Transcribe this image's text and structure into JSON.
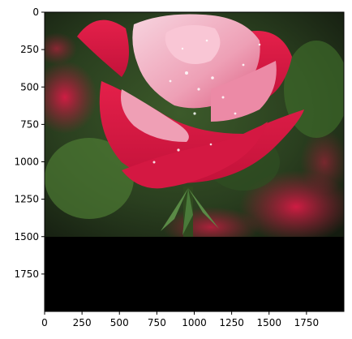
{
  "figure": {
    "type": "image-plot",
    "image": {
      "description_icon": "rose-photo",
      "colors": {
        "petal_red": "#d8173f",
        "petal_pink": "#f0a7bd",
        "petal_highlight": "#f7d2de",
        "leaf_green": "#3f6b2c",
        "background_dark": "#1e2b17",
        "padding": "#000000"
      }
    },
    "axes": {
      "x_ticks": [
        "0",
        "250",
        "500",
        "750",
        "1000",
        "1250",
        "1500",
        "1750"
      ],
      "y_ticks": [
        "0",
        "250",
        "500",
        "750",
        "1000",
        "1250",
        "1500",
        "1750"
      ],
      "xlim": [
        0,
        2000
      ],
      "ylim": [
        2000,
        0
      ]
    }
  },
  "chart_data": {
    "type": "heatmap",
    "xlabel": "",
    "ylabel": "",
    "x_ticks": [
      0,
      250,
      500,
      750,
      1000,
      1250,
      1500,
      1750
    ],
    "y_ticks": [
      0,
      250,
      500,
      750,
      1000,
      1250,
      1500,
      1750
    ],
    "xlim": [
      0,
      2000
    ],
    "ylim": [
      2000,
      0
    ],
    "image_extent": {
      "width": 2000,
      "height": 2000
    },
    "photo_region": {
      "y_start": 0,
      "y_end": 1500
    },
    "padding_region": {
      "y_start": 1500,
      "y_end": 2000,
      "color": "#000000"
    },
    "grid": false
  }
}
